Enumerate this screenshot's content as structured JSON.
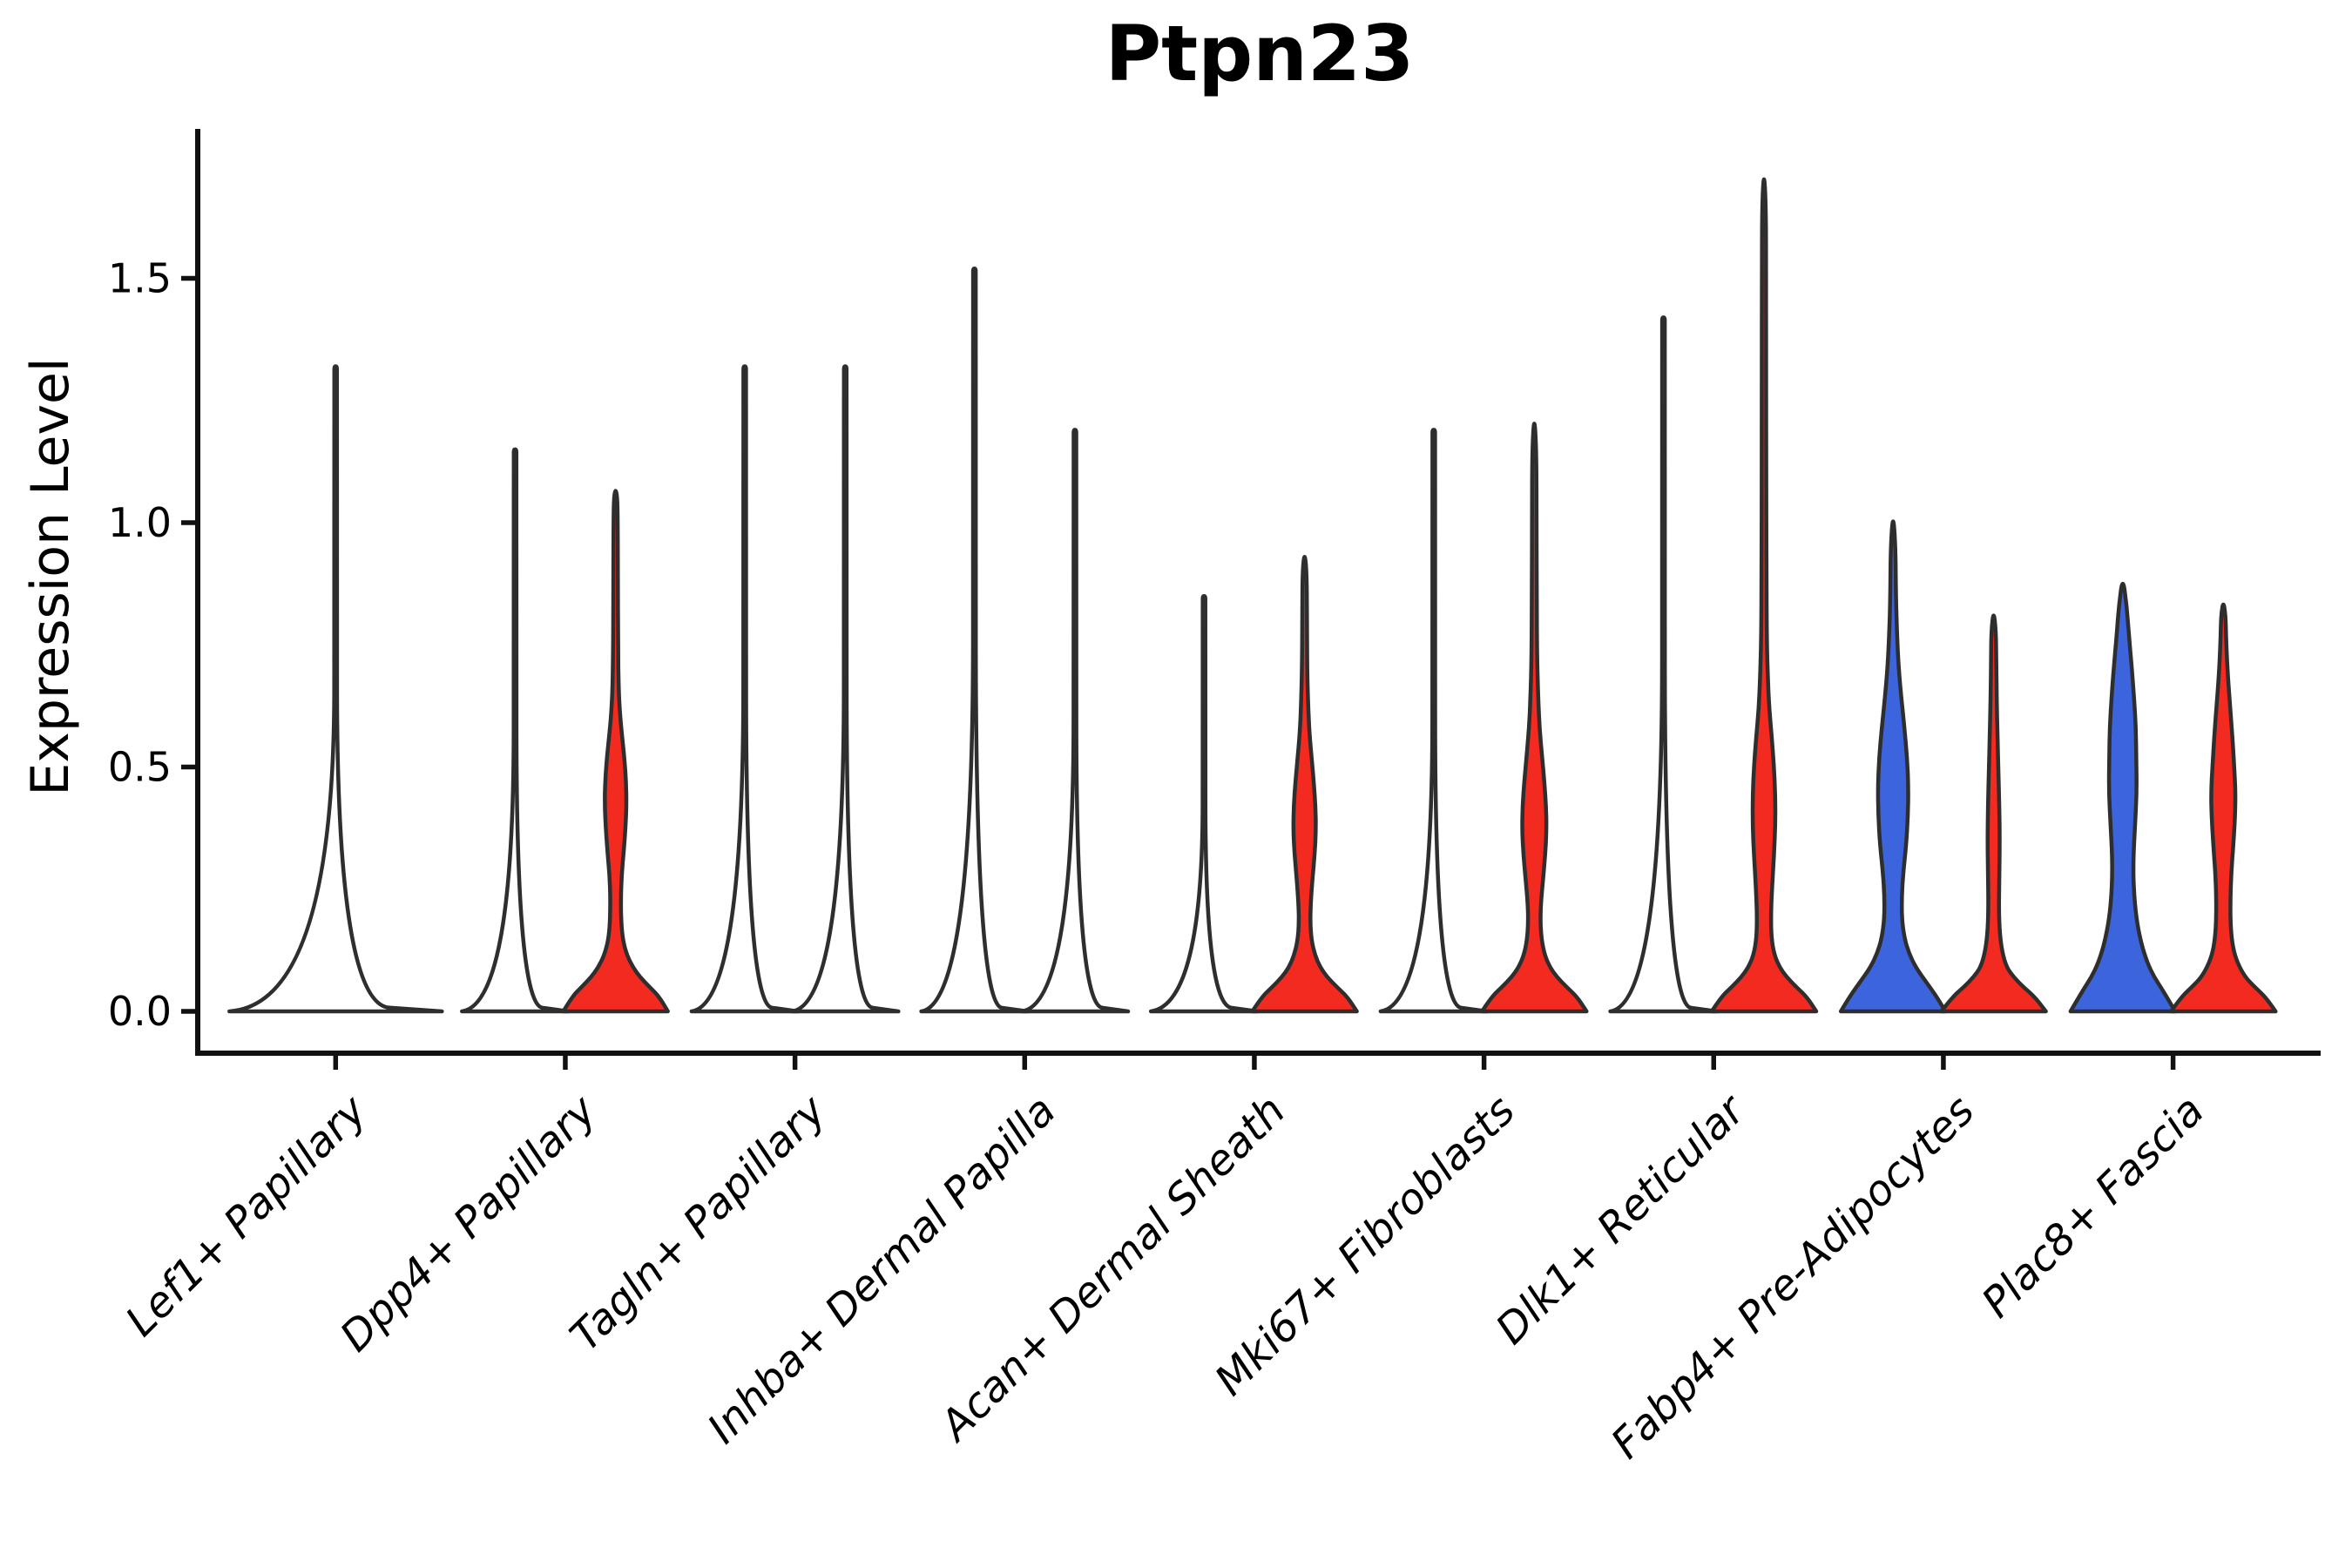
{
  "title": "Ptpn23",
  "y_axis": {
    "label": "Expression Level",
    "tick_labels": [
      "0.0",
      "0.5",
      "1.0",
      "1.5"
    ],
    "tick_values": [
      0.0,
      0.5,
      1.0,
      1.5
    ]
  },
  "x_axis": {
    "categories": [
      "Lef1+ Papillary",
      "Dpp4+ Papillary",
      "Tagln+ Papillary",
      "Inhba+ Dermal Papilla",
      "Acan+ Dermal Sheath",
      "Mki67+ Fibroblasts",
      "Dlk1+ Reticular",
      "Fabp4+ Pre-Adipocytes",
      "Plac8+ Fascia"
    ]
  },
  "colors": {
    "red_fill": "#F32A1F",
    "blue_fill": "#3C64DC",
    "violin_outline": "#2e2e2e",
    "axis": "#111111",
    "background": "#ffffff"
  },
  "chart_data": {
    "type": "violin",
    "title": "Ptpn23",
    "xlabel": "",
    "ylabel": "Expression Level",
    "ylim": [
      -0.09,
      1.8
    ],
    "grid": false,
    "legend": "none",
    "categories": [
      "Lef1+ Papillary",
      "Dpp4+ Papillary",
      "Tagln+ Papillary",
      "Inhba+ Dermal Papilla",
      "Acan+ Dermal Sheath",
      "Mki67+ Fibroblasts",
      "Dlk1+ Reticular",
      "Fabp4+ Pre-Adipocytes",
      "Plac8+ Fascia"
    ],
    "description": "Paired violin plot of Ptpn23 expression per fibroblast cluster; each cluster shows a left (blue group) and right (red group) violin. Most mass sits at 0 with thin tails; profile = [expression_value, half_width_px].",
    "max_expression_by_cluster": {
      "Lef1+ Papillary": {
        "single": 1.32
      },
      "Dpp4+ Papillary": {
        "left": 1.15,
        "right": 1.07
      },
      "Tagln+ Papillary": {
        "left": 1.32,
        "right": 1.32
      },
      "Inhba+ Dermal Papilla": {
        "left": 1.52,
        "right": 1.19
      },
      "Acan+ Dermal Sheath": {
        "left": 0.85,
        "right": 0.94
      },
      "Mki67+ Fibroblasts": {
        "left": 1.19,
        "right": 1.22
      },
      "Dlk1+ Reticular": {
        "left": 1.42,
        "right": 1.72
      },
      "Fabp4+ Pre-Adipocytes": {
        "left": 1.02,
        "right": 0.82
      },
      "Plac8+ Fascia": {
        "left": 0.89,
        "right": 0.84
      }
    },
    "violins": [
      {
        "cluster": 0,
        "side": 0,
        "color": "none",
        "max": 1.32,
        "profile": [
          [
            0,
            122
          ],
          [
            0.015,
            1.6
          ],
          [
            1.31,
            1.6
          ],
          [
            1.32,
            1.4
          ]
        ]
      },
      {
        "cluster": 1,
        "side": -1,
        "color": "none",
        "max": 1.15,
        "profile": [
          [
            0,
            61
          ],
          [
            0.015,
            1.6
          ],
          [
            1.14,
            1.6
          ],
          [
            1.15,
            1.4
          ]
        ]
      },
      {
        "cluster": 1,
        "side": 1,
        "color": "red",
        "max": 1.07,
        "profile": [
          [
            0,
            60
          ],
          [
            0.03,
            50
          ],
          [
            0.05,
            39
          ],
          [
            0.07,
            28
          ],
          [
            0.09,
            20
          ],
          [
            0.115,
            13
          ],
          [
            0.145,
            8.5
          ],
          [
            0.18,
            6.5
          ],
          [
            0.23,
            6
          ],
          [
            0.28,
            7
          ],
          [
            0.33,
            9.5
          ],
          [
            0.38,
            11.5
          ],
          [
            0.425,
            12.5
          ],
          [
            0.47,
            12
          ],
          [
            0.52,
            10
          ],
          [
            0.57,
            7
          ],
          [
            0.61,
            5
          ],
          [
            0.66,
            3.5
          ],
          [
            0.75,
            2.8
          ],
          [
            0.9,
            2.6
          ],
          [
            1.0,
            2.4
          ],
          [
            1.05,
            2.0
          ],
          [
            1.07,
            0
          ]
        ]
      },
      {
        "cluster": 2,
        "side": -1,
        "color": "none",
        "max": 1.32,
        "profile": [
          [
            0,
            61
          ],
          [
            0.015,
            1.6
          ],
          [
            1.31,
            1.6
          ],
          [
            1.32,
            1.4
          ]
        ]
      },
      {
        "cluster": 2,
        "side": 1,
        "color": "none",
        "max": 1.32,
        "profile": [
          [
            0,
            61
          ],
          [
            0.015,
            1.6
          ],
          [
            1.31,
            1.6
          ],
          [
            1.32,
            1.4
          ]
        ]
      },
      {
        "cluster": 3,
        "side": -1,
        "color": "none",
        "max": 1.52,
        "profile": [
          [
            0,
            61
          ],
          [
            0.015,
            1.6
          ],
          [
            1.51,
            1.6
          ],
          [
            1.52,
            1.4
          ]
        ]
      },
      {
        "cluster": 3,
        "side": 1,
        "color": "none",
        "max": 1.19,
        "profile": [
          [
            0,
            61
          ],
          [
            0.015,
            1.6
          ],
          [
            1.18,
            1.6
          ],
          [
            1.19,
            1.4
          ]
        ]
      },
      {
        "cluster": 4,
        "side": -1,
        "color": "none",
        "max": 0.85,
        "profile": [
          [
            0,
            61
          ],
          [
            0.015,
            1.6
          ],
          [
            0.84,
            1.6
          ],
          [
            0.85,
            1.4
          ]
        ]
      },
      {
        "cluster": 4,
        "side": 1,
        "color": "red",
        "max": 0.94,
        "profile": [
          [
            0,
            60
          ],
          [
            0.03,
            49
          ],
          [
            0.05,
            37
          ],
          [
            0.07,
            26
          ],
          [
            0.09,
            18
          ],
          [
            0.115,
            12
          ],
          [
            0.145,
            8
          ],
          [
            0.18,
            6.5
          ],
          [
            0.22,
            7
          ],
          [
            0.27,
            9
          ],
          [
            0.32,
            11.5
          ],
          [
            0.37,
            13
          ],
          [
            0.42,
            12.5
          ],
          [
            0.47,
            10.5
          ],
          [
            0.52,
            8
          ],
          [
            0.57,
            5.5
          ],
          [
            0.63,
            4
          ],
          [
            0.7,
            3
          ],
          [
            0.8,
            2.7
          ],
          [
            0.9,
            2.4
          ],
          [
            0.94,
            0
          ]
        ]
      },
      {
        "cluster": 5,
        "side": -1,
        "color": "none",
        "max": 1.19,
        "profile": [
          [
            0,
            61
          ],
          [
            0.015,
            1.6
          ],
          [
            1.18,
            1.6
          ],
          [
            1.19,
            1.4
          ]
        ]
      },
      {
        "cluster": 5,
        "side": 1,
        "color": "red",
        "max": 1.22,
        "profile": [
          [
            0,
            60
          ],
          [
            0.03,
            49
          ],
          [
            0.05,
            37
          ],
          [
            0.07,
            26
          ],
          [
            0.09,
            18
          ],
          [
            0.115,
            12
          ],
          [
            0.145,
            8.5
          ],
          [
            0.18,
            7
          ],
          [
            0.22,
            7.5
          ],
          [
            0.27,
            10
          ],
          [
            0.32,
            12.5
          ],
          [
            0.37,
            14
          ],
          [
            0.42,
            13.5
          ],
          [
            0.47,
            11.5
          ],
          [
            0.52,
            9
          ],
          [
            0.58,
            6
          ],
          [
            0.64,
            4.5
          ],
          [
            0.72,
            3.2
          ],
          [
            0.85,
            2.8
          ],
          [
            1.0,
            2.6
          ],
          [
            1.15,
            2.4
          ],
          [
            1.22,
            0
          ]
        ]
      },
      {
        "cluster": 6,
        "side": -1,
        "color": "none",
        "max": 1.42,
        "profile": [
          [
            0,
            61
          ],
          [
            0.015,
            1.6
          ],
          [
            1.41,
            1.6
          ],
          [
            1.42,
            1.4
          ]
        ]
      },
      {
        "cluster": 6,
        "side": 1,
        "color": "red",
        "max": 1.72,
        "profile": [
          [
            0,
            60
          ],
          [
            0.03,
            49
          ],
          [
            0.05,
            37
          ],
          [
            0.07,
            26
          ],
          [
            0.09,
            18
          ],
          [
            0.115,
            12
          ],
          [
            0.15,
            8.5
          ],
          [
            0.2,
            8
          ],
          [
            0.26,
            9.5
          ],
          [
            0.32,
            11.5
          ],
          [
            0.38,
            13
          ],
          [
            0.44,
            13
          ],
          [
            0.5,
            11.5
          ],
          [
            0.56,
            9
          ],
          [
            0.62,
            6
          ],
          [
            0.68,
            4.5
          ],
          [
            0.76,
            3.2
          ],
          [
            0.9,
            2.8
          ],
          [
            1.1,
            2.6
          ],
          [
            1.3,
            2.5
          ],
          [
            1.5,
            2.4
          ],
          [
            1.65,
            2.2
          ],
          [
            1.72,
            0
          ]
        ]
      },
      {
        "cluster": 7,
        "side": -1,
        "color": "blue",
        "max": 1.02,
        "profile": [
          [
            0,
            60
          ],
          [
            0.03,
            50
          ],
          [
            0.06,
            38
          ],
          [
            0.09,
            26
          ],
          [
            0.12,
            18
          ],
          [
            0.15,
            13
          ],
          [
            0.19,
            10
          ],
          [
            0.24,
            10
          ],
          [
            0.29,
            12
          ],
          [
            0.34,
            15
          ],
          [
            0.4,
            17
          ],
          [
            0.46,
            17.5
          ],
          [
            0.52,
            16
          ],
          [
            0.58,
            13
          ],
          [
            0.64,
            9.5
          ],
          [
            0.7,
            6.5
          ],
          [
            0.77,
            4.5
          ],
          [
            0.85,
            3.2
          ],
          [
            0.95,
            2.8
          ],
          [
            1.02,
            0
          ]
        ]
      },
      {
        "cluster": 7,
        "side": 1,
        "color": "red",
        "max": 0.82,
        "profile": [
          [
            0,
            60
          ],
          [
            0.03,
            47
          ],
          [
            0.05,
            34
          ],
          [
            0.07,
            23
          ],
          [
            0.09,
            15
          ],
          [
            0.12,
            10
          ],
          [
            0.16,
            7
          ],
          [
            0.21,
            6
          ],
          [
            0.28,
            6.5
          ],
          [
            0.35,
            7
          ],
          [
            0.42,
            6.5
          ],
          [
            0.49,
            5.5
          ],
          [
            0.56,
            4.5
          ],
          [
            0.64,
            3.5
          ],
          [
            0.72,
            3
          ],
          [
            0.78,
            2.6
          ],
          [
            0.82,
            0
          ]
        ]
      },
      {
        "cluster": 8,
        "side": -1,
        "color": "blue",
        "max": 0.89,
        "profile": [
          [
            0,
            60
          ],
          [
            0.04,
            47
          ],
          [
            0.07,
            36
          ],
          [
            0.1,
            28
          ],
          [
            0.14,
            21
          ],
          [
            0.19,
            15.5
          ],
          [
            0.25,
            12.5
          ],
          [
            0.31,
            12
          ],
          [
            0.38,
            14
          ],
          [
            0.45,
            16
          ],
          [
            0.52,
            15.5
          ],
          [
            0.58,
            15
          ],
          [
            0.64,
            13
          ],
          [
            0.7,
            10.5
          ],
          [
            0.77,
            7
          ],
          [
            0.83,
            4.5
          ],
          [
            0.89,
            0
          ]
        ]
      },
      {
        "cluster": 8,
        "side": 1,
        "color": "red",
        "max": 0.84,
        "profile": [
          [
            0,
            60
          ],
          [
            0.03,
            48
          ],
          [
            0.05,
            36
          ],
          [
            0.07,
            25
          ],
          [
            0.1,
            16
          ],
          [
            0.13,
            11
          ],
          [
            0.17,
            8.5
          ],
          [
            0.22,
            8
          ],
          [
            0.28,
            9
          ],
          [
            0.34,
            11.5
          ],
          [
            0.4,
            13.5
          ],
          [
            0.45,
            14
          ],
          [
            0.5,
            12.5
          ],
          [
            0.56,
            10.5
          ],
          [
            0.62,
            8
          ],
          [
            0.69,
            5
          ],
          [
            0.76,
            3.2
          ],
          [
            0.81,
            2.6
          ],
          [
            0.84,
            0
          ]
        ]
      }
    ]
  }
}
